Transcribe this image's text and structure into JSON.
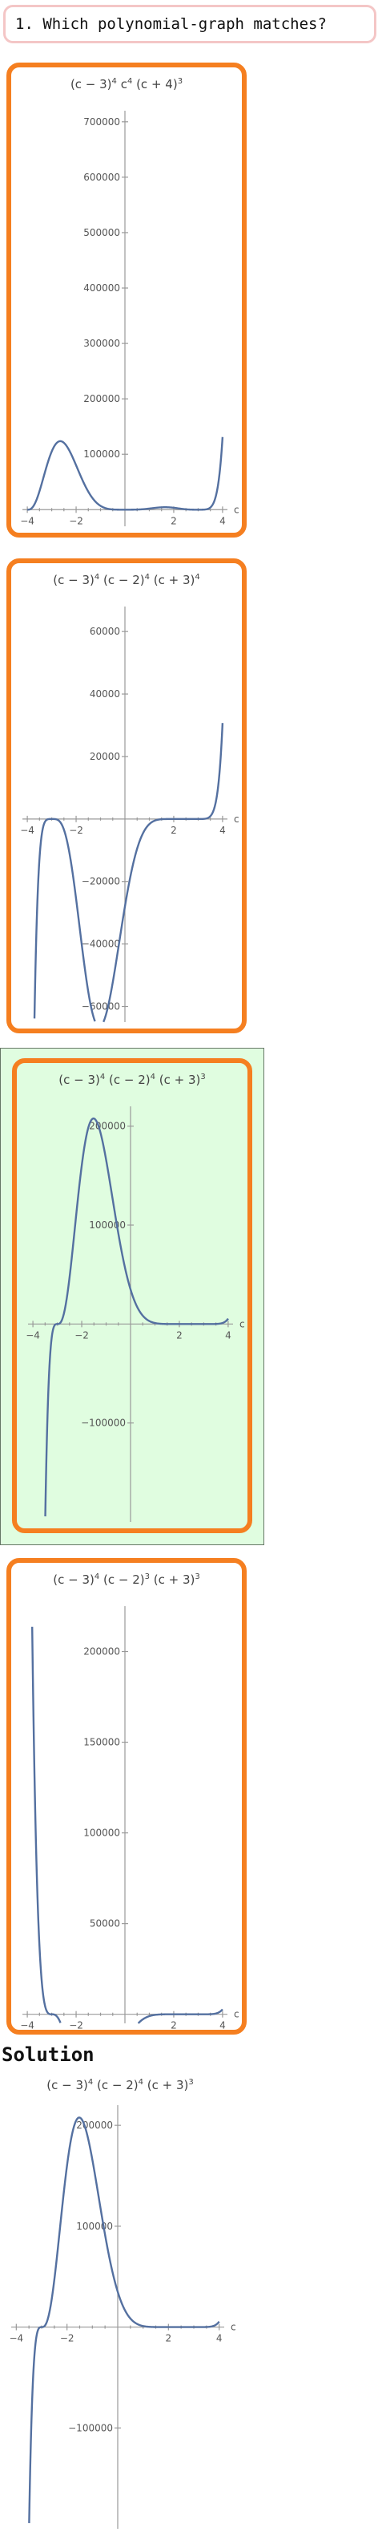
{
  "question": {
    "text": "1. Which polynomial-graph matches?"
  },
  "solution": {
    "heading": "Solution"
  },
  "colors": {
    "option_border": "#f57f20",
    "correct_bg": "#e0fde0",
    "curve": "#5470a0",
    "question_border": "#f4c6c6"
  },
  "chart_data": [
    {
      "type": "line",
      "title_html": "(c − 3)^4 c^4 (c + 4)^3",
      "title_parts": [
        "(c − 3)",
        "4",
        " c",
        "4",
        " (c + 4)",
        "3"
      ],
      "xlabel": "c",
      "xlim": [
        -4.2,
        4.2
      ],
      "ylim": [
        -30000,
        720000
      ],
      "x_ticks": [
        -4,
        -2,
        2,
        4
      ],
      "y_ticks": [
        100000,
        200000,
        300000,
        400000,
        500000,
        600000,
        700000
      ],
      "y_tick_labels": [
        "100000",
        "200000",
        "300000",
        "400000",
        "500000",
        "600000",
        "700000"
      ],
      "x_tick_labels": [
        "−4",
        "−2",
        "2",
        "4"
      ],
      "formula": "a"
    },
    {
      "type": "line",
      "title_parts": [
        "(c − 3)",
        "4",
        " (c − 2)",
        "4",
        " (c + 3)",
        "4"
      ],
      "xlabel": "c",
      "xlim": [
        -4.2,
        4.2
      ],
      "ylim": [
        -65000,
        68000
      ],
      "x_ticks": [
        -4,
        -2,
        2,
        4
      ],
      "y_ticks": [
        -60000,
        -40000,
        -20000,
        20000,
        40000,
        60000
      ],
      "y_tick_labels": [
        "−60000",
        "−40000",
        "−20000",
        "20000",
        "40000",
        "60000"
      ],
      "x_tick_labels": [
        "−4",
        "−2",
        "2",
        "4"
      ],
      "formula": "b"
    },
    {
      "type": "line",
      "title_parts": [
        "(c − 3)",
        "4",
        " (c − 2)",
        "4",
        " (c + 3)",
        "3"
      ],
      "xlabel": "c",
      "xlim": [
        -4.2,
        4.2
      ],
      "ylim": [
        -200000,
        220000
      ],
      "x_ticks": [
        -4,
        -2,
        2,
        4
      ],
      "y_ticks": [
        -100000,
        100000,
        200000
      ],
      "y_tick_labels": [
        "−100000",
        "100000",
        "200000"
      ],
      "x_tick_labels": [
        "−4",
        "−2",
        "2",
        "4"
      ],
      "formula": "c"
    },
    {
      "type": "line",
      "title_parts": [
        "(c − 3)",
        "4",
        " (c − 2)",
        "3",
        " (c + 3)",
        "3"
      ],
      "xlabel": "c",
      "xlim": [
        -4.2,
        4.2
      ],
      "ylim": [
        -5000,
        225000
      ],
      "x_ticks": [
        -4,
        -2,
        2,
        4
      ],
      "y_ticks": [
        50000,
        100000,
        150000,
        200000
      ],
      "y_tick_labels": [
        "50000",
        "100000",
        "150000",
        "200000"
      ],
      "x_tick_labels": [
        "−4",
        "−2",
        "2",
        "4"
      ],
      "formula": "d"
    },
    {
      "type": "line",
      "title_parts": [
        "(c − 3)",
        "4",
        " (c − 2)",
        "4",
        " (c + 3)",
        "3"
      ],
      "xlabel": "c",
      "xlim": [
        -4.2,
        4.2
      ],
      "ylim": [
        -200000,
        220000
      ],
      "x_ticks": [
        -4,
        -2,
        2,
        4
      ],
      "y_ticks": [
        -100000,
        100000,
        200000
      ],
      "y_tick_labels": [
        "−100000",
        "100000",
        "200000"
      ],
      "x_tick_labels": [
        "−4",
        "−2",
        "2",
        "4"
      ],
      "formula": "c"
    }
  ]
}
